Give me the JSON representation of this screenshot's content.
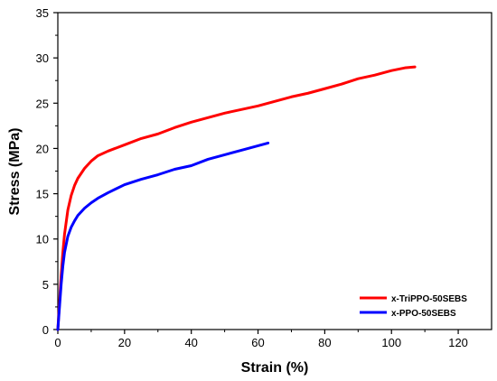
{
  "chart_data": {
    "type": "line",
    "xlabel": "Strain (%)",
    "ylabel": "Stress (MPa)",
    "xlim": [
      0,
      130
    ],
    "ylim": [
      0,
      35
    ],
    "x_ticks": [
      0,
      20,
      40,
      60,
      80,
      100,
      120
    ],
    "y_ticks": [
      0,
      5,
      10,
      15,
      20,
      25,
      30,
      35
    ],
    "legend_position": "bottom-right",
    "grid": false,
    "series": [
      {
        "name": "x-TriPPO-50SEBS",
        "color": "#ff0000",
        "points": [
          [
            0,
            0
          ],
          [
            0.5,
            3
          ],
          [
            1,
            6
          ],
          [
            1.5,
            8.5
          ],
          [
            2,
            10.5
          ],
          [
            3,
            13.2
          ],
          [
            4,
            14.8
          ],
          [
            5,
            15.9
          ],
          [
            6,
            16.7
          ],
          [
            8,
            17.8
          ],
          [
            10,
            18.6
          ],
          [
            12,
            19.2
          ],
          [
            15,
            19.7
          ],
          [
            20,
            20.4
          ],
          [
            25,
            21.1
          ],
          [
            30,
            21.6
          ],
          [
            35,
            22.3
          ],
          [
            40,
            22.9
          ],
          [
            45,
            23.4
          ],
          [
            50,
            23.9
          ],
          [
            55,
            24.3
          ],
          [
            60,
            24.7
          ],
          [
            65,
            25.2
          ],
          [
            70,
            25.7
          ],
          [
            75,
            26.1
          ],
          [
            80,
            26.6
          ],
          [
            85,
            27.1
          ],
          [
            90,
            27.7
          ],
          [
            95,
            28.1
          ],
          [
            100,
            28.6
          ],
          [
            104,
            28.9
          ],
          [
            107,
            29.0
          ]
        ]
      },
      {
        "name": "x-PPO-50SEBS",
        "color": "#0000ff",
        "points": [
          [
            0,
            0
          ],
          [
            0.5,
            2.5
          ],
          [
            1,
            5
          ],
          [
            1.5,
            7
          ],
          [
            2,
            8.5
          ],
          [
            3,
            10.3
          ],
          [
            4,
            11.3
          ],
          [
            5,
            12
          ],
          [
            6,
            12.6
          ],
          [
            8,
            13.4
          ],
          [
            10,
            14
          ],
          [
            12,
            14.5
          ],
          [
            15,
            15.1
          ],
          [
            20,
            16
          ],
          [
            25,
            16.6
          ],
          [
            30,
            17.1
          ],
          [
            35,
            17.7
          ],
          [
            40,
            18.1
          ],
          [
            45,
            18.8
          ],
          [
            50,
            19.3
          ],
          [
            55,
            19.8
          ],
          [
            60,
            20.3
          ],
          [
            63,
            20.6
          ]
        ]
      }
    ]
  }
}
